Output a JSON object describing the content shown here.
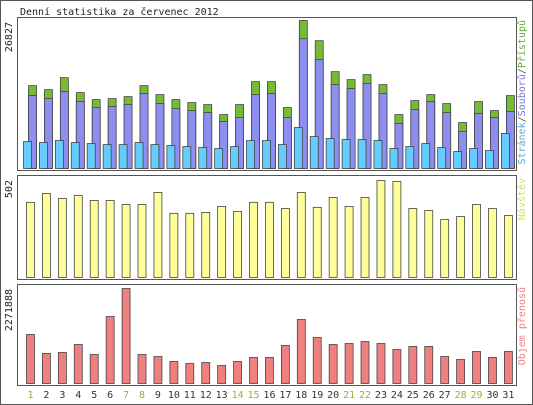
{
  "title": "Denní statistika za červenec 2012",
  "chart_data": [
    {
      "type": "bar",
      "ylim": [
        0,
        26827
      ],
      "legend_separator": "/",
      "series": [
        {
          "name": "Stránek",
          "color": "#66ccff",
          "label_color": "#5aa8d8",
          "values": [
            4887,
            4706,
            5068,
            4706,
            4525,
            4344,
            4344,
            4706,
            4344,
            4163,
            3982,
            3801,
            3620,
            3982,
            5068,
            5068,
            4344,
            7421,
            5792,
            5430,
            5249,
            5249,
            5068,
            3620,
            3982,
            4525,
            3801,
            3077,
            3620,
            3258,
            6335
          ]
        },
        {
          "name": "Souborů",
          "color": "#8e8ef0",
          "label_color": "#7a7ad8",
          "values": [
            13213,
            12670,
            13937,
            12127,
            11041,
            11222,
            11584,
            13575,
            11765,
            10860,
            10498,
            10136,
            8507,
            9231,
            13394,
            13575,
            9231,
            23530,
            19729,
            15204,
            14480,
            15385,
            13575,
            8145,
            10679,
            12127,
            10136,
            6697,
            9955,
            9231,
            10317
          ]
        },
        {
          "name": "Přístupů",
          "color": "#77bb33",
          "label_color": "#66aa33",
          "values": [
            15023,
            14299,
            16471,
            13756,
            12489,
            12670,
            13032,
            15023,
            13394,
            12489,
            11946,
            11584,
            9774,
            11584,
            15747,
            15747,
            11041,
            26827,
            23168,
            17557,
            16109,
            17014,
            15204,
            9774,
            12308,
            13394,
            11765,
            8326,
            12127,
            10498,
            13213
          ]
        }
      ]
    },
    {
      "type": "bar",
      "ylim": [
        0,
        502
      ],
      "series": [
        {
          "name": "Návštěv",
          "color": "#ffff99",
          "label_color": "#d8d870",
          "values": [
            389,
            435,
            409,
            425,
            399,
            399,
            378,
            378,
            440,
            332,
            332,
            337,
            368,
            342,
            389,
            389,
            357,
            440,
            363,
            414,
            368,
            414,
            502,
            497,
            357,
            347,
            300,
            316,
            378,
            357,
            321
          ]
        }
      ]
    },
    {
      "type": "bar",
      "ylim": [
        0,
        2271888
      ],
      "categories": [
        "1",
        "2",
        "3",
        "4",
        "5",
        "6",
        "7",
        "8",
        "9",
        "10",
        "11",
        "12",
        "13",
        "14",
        "15",
        "16",
        "17",
        "18",
        "19",
        "20",
        "21",
        "22",
        "23",
        "24",
        "25",
        "26",
        "27",
        "28",
        "29",
        "30",
        "31"
      ],
      "label_colors": [
        "#88bb33",
        "#333333",
        "#333333",
        "#333333",
        "#333333",
        "#333333",
        "#88bb33",
        "#88bb33",
        "#333333",
        "#333333",
        "#333333",
        "#333333",
        "#333333",
        "#88bb33",
        "#88bb33",
        "#333333",
        "#333333",
        "#333333",
        "#333333",
        "#333333",
        "#88bb33",
        "#88bb33",
        "#333333",
        "#333333",
        "#333333",
        "#333333",
        "#333333",
        "#88bb33",
        "#88bb33",
        "#333333",
        "#333333"
      ],
      "series": [
        {
          "name": "Objem přenosů",
          "color": "#f08080",
          "label_color": "#f08080",
          "values": [
            1171835,
            717450,
            741365,
            932685,
            693535,
            1602305,
            2271888,
            693535,
            645705,
            526130,
            478300,
            502215,
            430470,
            526130,
            621790,
            621790,
            908770,
            1530560,
            1100090,
            932685,
            956600,
            1004430,
            956600,
            813110,
            884855,
            884855,
            645705,
            573960,
            765280,
            621790,
            765280
          ]
        }
      ]
    }
  ]
}
